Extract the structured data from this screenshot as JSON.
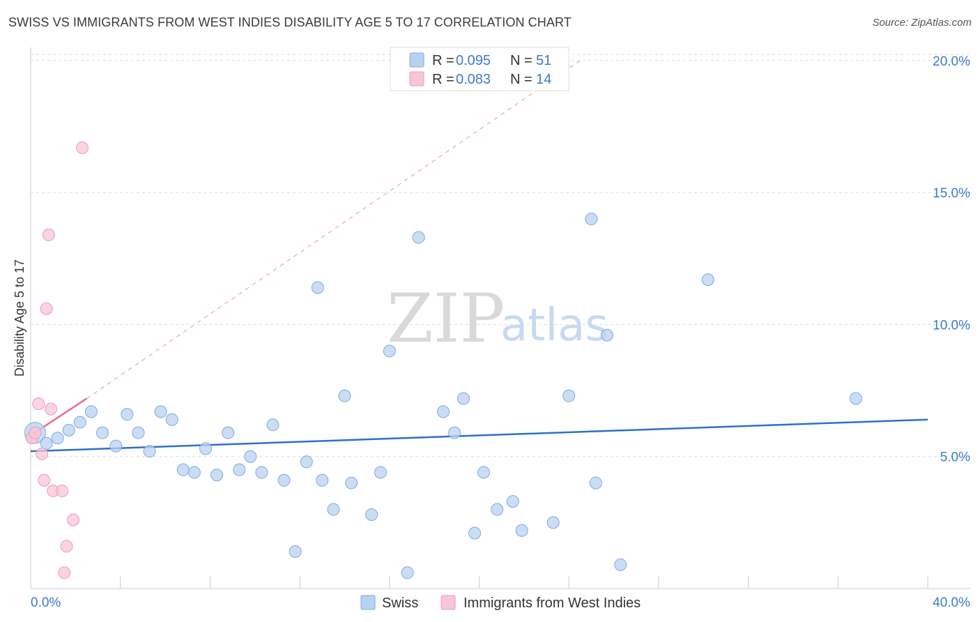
{
  "title": "SWISS VS IMMIGRANTS FROM WEST INDIES DISABILITY AGE 5 TO 17 CORRELATION CHART",
  "source": "Source: ZipAtlas.com",
  "watermark": {
    "zip": "ZIP",
    "atlas": "atlas"
  },
  "colors": {
    "swiss_fill": "#b8d2f2",
    "swiss_stroke": "#7ea9dd",
    "swiss_line": "#2e6fcc",
    "wi_fill": "#f8c6d4",
    "wi_stroke": "#ec9bb3",
    "wi_line": "#e86c94",
    "grid": "#dddddd",
    "axis_text": "#3d7ac9"
  },
  "legend_top": [
    {
      "r_label": "R = ",
      "r_value": "0.095",
      "n_label": "N = ",
      "n_value": "51"
    },
    {
      "r_label": "R = ",
      "r_value": "0.083",
      "n_label": "N = ",
      "n_value": "14"
    }
  ],
  "chart_data": {
    "type": "scatter",
    "ylabel": "Disability Age 5 to 17",
    "xlim": [
      0,
      40
    ],
    "ylim": [
      0,
      20.5
    ],
    "x_tick_labels": [
      "0.0%",
      "40.0%"
    ],
    "y_ticks": [
      5,
      10,
      15,
      20
    ],
    "y_tick_labels": [
      "5.0%",
      "10.0%",
      "15.0%",
      "20.0%"
    ],
    "series": [
      {
        "name": "Swiss",
        "trend": {
          "x": [
            0,
            40
          ],
          "y": [
            5.2,
            6.4
          ]
        },
        "points": [
          {
            "x": 0.2,
            "y": 5.9,
            "big": true
          },
          {
            "x": 0.7,
            "y": 5.5
          },
          {
            "x": 1.2,
            "y": 5.7
          },
          {
            "x": 1.7,
            "y": 6.0
          },
          {
            "x": 2.2,
            "y": 6.3
          },
          {
            "x": 2.7,
            "y": 6.7
          },
          {
            "x": 3.2,
            "y": 5.9
          },
          {
            "x": 3.8,
            "y": 5.4
          },
          {
            "x": 4.3,
            "y": 6.6
          },
          {
            "x": 4.8,
            "y": 5.9
          },
          {
            "x": 5.3,
            "y": 5.2
          },
          {
            "x": 5.8,
            "y": 6.7
          },
          {
            "x": 6.3,
            "y": 6.4
          },
          {
            "x": 6.8,
            "y": 4.5
          },
          {
            "x": 7.3,
            "y": 4.4
          },
          {
            "x": 7.8,
            "y": 5.3
          },
          {
            "x": 8.3,
            "y": 4.3
          },
          {
            "x": 8.8,
            "y": 5.9
          },
          {
            "x": 9.3,
            "y": 4.5
          },
          {
            "x": 9.8,
            "y": 5.0
          },
          {
            "x": 10.3,
            "y": 4.4
          },
          {
            "x": 10.8,
            "y": 6.2
          },
          {
            "x": 11.3,
            "y": 4.1
          },
          {
            "x": 11.8,
            "y": 1.4
          },
          {
            "x": 12.3,
            "y": 4.8
          },
          {
            "x": 12.8,
            "y": 11.4
          },
          {
            "x": 13.0,
            "y": 4.1
          },
          {
            "x": 13.5,
            "y": 3.0
          },
          {
            "x": 14.0,
            "y": 7.3
          },
          {
            "x": 14.3,
            "y": 4.0
          },
          {
            "x": 15.2,
            "y": 2.8
          },
          {
            "x": 15.6,
            "y": 4.4
          },
          {
            "x": 16.0,
            "y": 9.0
          },
          {
            "x": 16.8,
            "y": 0.6
          },
          {
            "x": 17.3,
            "y": 13.3
          },
          {
            "x": 18.4,
            "y": 6.7
          },
          {
            "x": 18.9,
            "y": 5.9
          },
          {
            "x": 19.3,
            "y": 7.2
          },
          {
            "x": 19.8,
            "y": 2.1
          },
          {
            "x": 20.2,
            "y": 4.4
          },
          {
            "x": 20.8,
            "y": 3.0
          },
          {
            "x": 21.5,
            "y": 3.3
          },
          {
            "x": 21.9,
            "y": 2.2
          },
          {
            "x": 23.3,
            "y": 2.5
          },
          {
            "x": 24.0,
            "y": 7.3
          },
          {
            "x": 25.0,
            "y": 14.0
          },
          {
            "x": 25.2,
            "y": 4.0
          },
          {
            "x": 25.7,
            "y": 9.6
          },
          {
            "x": 26.3,
            "y": 0.9
          },
          {
            "x": 30.2,
            "y": 11.7
          },
          {
            "x": 36.8,
            "y": 7.2
          }
        ]
      },
      {
        "name": "Immigrants from West Indies",
        "trend": {
          "x": [
            0,
            2.5
          ],
          "y": [
            5.8,
            7.2
          ]
        },
        "trend_extension": {
          "x": [
            2.5,
            24.5
          ],
          "y": [
            7.2,
            20.0
          ]
        },
        "points": [
          {
            "x": 0.05,
            "y": 5.7
          },
          {
            "x": 0.2,
            "y": 5.9
          },
          {
            "x": 0.35,
            "y": 7.0
          },
          {
            "x": 0.5,
            "y": 5.1
          },
          {
            "x": 0.6,
            "y": 4.1
          },
          {
            "x": 0.7,
            "y": 10.6
          },
          {
            "x": 0.8,
            "y": 13.4
          },
          {
            "x": 0.9,
            "y": 6.8
          },
          {
            "x": 1.0,
            "y": 3.7
          },
          {
            "x": 1.4,
            "y": 3.7
          },
          {
            "x": 1.5,
            "y": 0.6
          },
          {
            "x": 1.6,
            "y": 1.6
          },
          {
            "x": 1.9,
            "y": 2.6
          },
          {
            "x": 2.3,
            "y": 16.7
          }
        ]
      }
    ]
  },
  "legend_bottom": [
    "Swiss",
    "Immigrants from West Indies"
  ]
}
